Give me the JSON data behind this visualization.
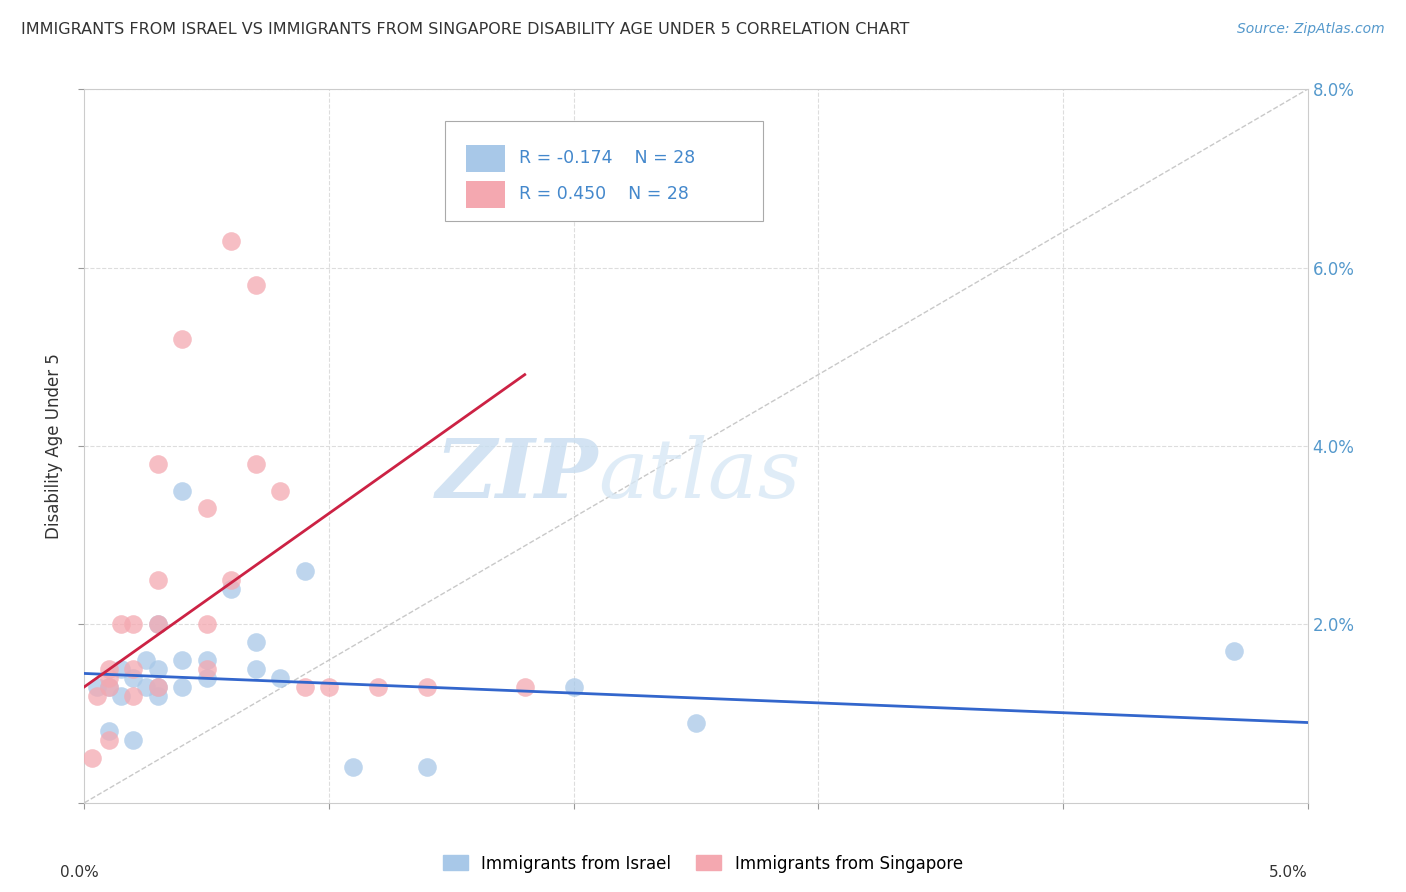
{
  "title": "IMMIGRANTS FROM ISRAEL VS IMMIGRANTS FROM SINGAPORE DISABILITY AGE UNDER 5 CORRELATION CHART",
  "source": "Source: ZipAtlas.com",
  "ylabel": "Disability Age Under 5",
  "xlim": [
    0.0,
    0.05
  ],
  "ylim": [
    0.0,
    0.08
  ],
  "legend_israel": "Immigrants from Israel",
  "legend_singapore": "Immigrants from Singapore",
  "R_israel": "-0.174",
  "N_israel": "28",
  "R_singapore": "0.450",
  "N_singapore": "28",
  "color_israel": "#a8c8e8",
  "color_singapore": "#f4a8b0",
  "color_israel_line": "#3366cc",
  "color_singapore_line": "#cc2244",
  "color_diagonal": "#bbbbbb",
  "watermark_zip": "ZIP",
  "watermark_atlas": "atlas",
  "israel_x": [
    0.0005,
    0.001,
    0.001,
    0.0015,
    0.0015,
    0.002,
    0.002,
    0.0025,
    0.0025,
    0.003,
    0.003,
    0.003,
    0.003,
    0.004,
    0.004,
    0.004,
    0.005,
    0.005,
    0.006,
    0.007,
    0.007,
    0.008,
    0.009,
    0.011,
    0.014,
    0.02,
    0.025,
    0.047
  ],
  "israel_y": [
    0.013,
    0.013,
    0.008,
    0.012,
    0.015,
    0.007,
    0.014,
    0.013,
    0.016,
    0.012,
    0.013,
    0.015,
    0.02,
    0.013,
    0.016,
    0.035,
    0.014,
    0.016,
    0.024,
    0.015,
    0.018,
    0.014,
    0.026,
    0.004,
    0.004,
    0.013,
    0.009,
    0.017
  ],
  "singapore_x": [
    0.0003,
    0.0005,
    0.001,
    0.001,
    0.001,
    0.001,
    0.0015,
    0.002,
    0.002,
    0.002,
    0.003,
    0.003,
    0.003,
    0.003,
    0.004,
    0.005,
    0.005,
    0.005,
    0.006,
    0.006,
    0.007,
    0.007,
    0.008,
    0.009,
    0.01,
    0.012,
    0.014,
    0.018
  ],
  "singapore_y": [
    0.005,
    0.012,
    0.014,
    0.015,
    0.007,
    0.013,
    0.02,
    0.012,
    0.015,
    0.02,
    0.013,
    0.02,
    0.025,
    0.038,
    0.052,
    0.015,
    0.02,
    0.033,
    0.025,
    0.063,
    0.038,
    0.058,
    0.035,
    0.013,
    0.013,
    0.013,
    0.013,
    0.013
  ],
  "israel_line_x": [
    0.0,
    0.05
  ],
  "israel_line_y": [
    0.0145,
    0.009
  ],
  "singapore_line_x": [
    0.0,
    0.018
  ],
  "singapore_line_y": [
    0.013,
    0.048
  ]
}
